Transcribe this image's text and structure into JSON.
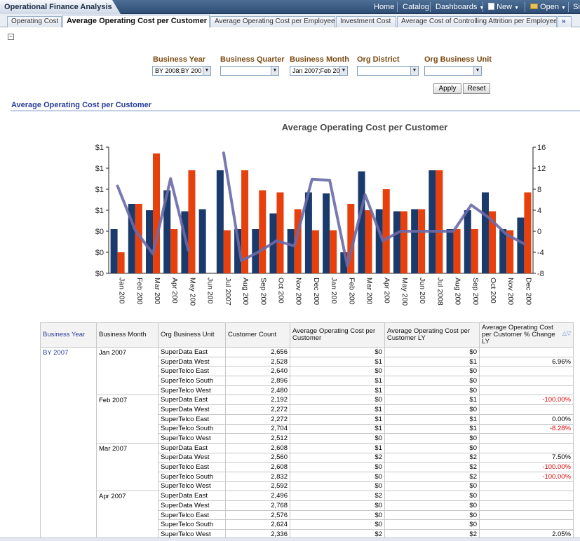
{
  "app_title": "Operational Finance Analysis",
  "nav": {
    "home": "Home",
    "catalog": "Catalog",
    "dashboards": "Dashboards",
    "new": "New",
    "open": "Open",
    "more": "Si"
  },
  "tabs": [
    {
      "label": "Operating Cost"
    },
    {
      "label": "Average Operating Cost per Customer"
    },
    {
      "label": "Average Operating Cost per Employee"
    },
    {
      "label": "Investment Cost"
    },
    {
      "label": "Average Cost of Controlling Attrition per Employee"
    },
    {
      "label": "»"
    }
  ],
  "prompts": {
    "business_year": {
      "label": "Business Year",
      "value": "BY 2008;BY 200"
    },
    "business_quarter": {
      "label": "Business Quarter",
      "value": ""
    },
    "business_month": {
      "label": "Business Month",
      "value": "Jan 2007;Feb 20"
    },
    "org_district": {
      "label": "Org District",
      "value": ""
    },
    "org_business_unit": {
      "label": "Org Business Unit",
      "value": ""
    },
    "apply": "Apply",
    "reset": "Reset"
  },
  "section_title": "Average Operating Cost per Customer",
  "colors": {
    "series_a": "#1a3a6b",
    "series_b": "#e8400c",
    "line": "#6a6aa8"
  },
  "chart_data": {
    "type": "bar",
    "title": "Average Operating Cost per Customer",
    "y_tick_labels": [
      "$0",
      "$0",
      "$0",
      "$1",
      "$1",
      "$1",
      "$1"
    ],
    "y2_tick_labels": [
      "-8",
      "-4",
      "0",
      "4",
      "8",
      "12",
      "16"
    ],
    "y2lim": [
      -8,
      16
    ],
    "ylim": [
      0,
      1.2
    ],
    "categories": [
      "Jan 200",
      "Feb 200",
      "Mar 200",
      "Apr 200",
      "May 200",
      "Jun 200",
      "Jul 2007",
      "Aug 200",
      "Sep 200",
      "Oct 200",
      "Nov 200",
      "Dec 200",
      "Jan 200",
      "Feb 200",
      "Mar 200",
      "Apr 200",
      "May 200",
      "Jun 200",
      "Jul 2008",
      "Aug 200",
      "Sep 200",
      "Oct 200",
      "Nov 200",
      "Dec 200"
    ],
    "series": [
      {
        "values": [
          0.42,
          0.66,
          0.6,
          0.79,
          0.59,
          0.61,
          0.98,
          0.42,
          0.42,
          0.57,
          0.42,
          0.77,
          0.76,
          0.2,
          0.97,
          0.61,
          0.59,
          0.61,
          0.98,
          0.42,
          0.6,
          0.77,
          0.42,
          0.53
        ]
      },
      {
        "values": [
          0.2,
          0.66,
          1.14,
          0.42,
          0.98,
          null,
          0.41,
          0.98,
          0.79,
          0.77,
          0.61,
          0.41,
          0.41,
          0.66,
          0.6,
          0.8,
          0.59,
          0.61,
          0.98,
          0.42,
          0.42,
          0.59,
          0.41,
          0.77
        ]
      },
      {
        "values": [
          8.6,
          0.2,
          -4.3,
          10.0,
          -3.6,
          null,
          14.9,
          -5.6,
          -3.9,
          -1.8,
          -2.8,
          9.9,
          9.7,
          -6.6,
          6.96,
          -1.8,
          0.0,
          0.0,
          0.0,
          0.0,
          5.0,
          2.6,
          -0.6,
          -2.4
        ]
      }
    ]
  },
  "table": {
    "headers": [
      "Business Year",
      "Business Month",
      "Org Business Unit",
      "Customer Count",
      "Average Operating Cost per Customer",
      "Average Operating Cost per Customer LY",
      "Average Operating Cost per Customer % Change LY"
    ],
    "year": "BY 2007",
    "months": [
      {
        "month": "Jan 2007",
        "rows": [
          [
            "SuperData East",
            "2,656",
            "$0",
            "$0",
            ""
          ],
          [
            "SuperData West",
            "2,528",
            "$1",
            "$1",
            "6.96%"
          ],
          [
            "SuperTelco East",
            "2,640",
            "$0",
            "$0",
            ""
          ],
          [
            "SuperTelco South",
            "2,896",
            "$1",
            "$0",
            ""
          ],
          [
            "SuperTelco West",
            "2,480",
            "$1",
            "$0",
            ""
          ]
        ]
      },
      {
        "month": "Feb 2007",
        "rows": [
          [
            "SuperData East",
            "2,192",
            "$0",
            "$1",
            "-100.00%"
          ],
          [
            "SuperData West",
            "2,272",
            "$1",
            "$0",
            ""
          ],
          [
            "SuperTelco East",
            "2,272",
            "$1",
            "$1",
            "0.00%"
          ],
          [
            "SuperTelco South",
            "2,704",
            "$1",
            "$1",
            "-8.28%"
          ],
          [
            "SuperTelco West",
            "2,512",
            "$0",
            "$0",
            ""
          ]
        ]
      },
      {
        "month": "Mar 2007",
        "rows": [
          [
            "SuperData East",
            "2,608",
            "$1",
            "$0",
            ""
          ],
          [
            "SuperData West",
            "2,560",
            "$2",
            "$2",
            "7.50%"
          ],
          [
            "SuperTelco East",
            "2,608",
            "$0",
            "$2",
            "-100.00%"
          ],
          [
            "SuperTelco South",
            "2,832",
            "$0",
            "$2",
            "-100.00%"
          ],
          [
            "SuperTelco West",
            "2,592",
            "$0",
            "$0",
            ""
          ]
        ]
      },
      {
        "month": "Apr 2007",
        "rows": [
          [
            "SuperData East",
            "2,496",
            "$2",
            "$0",
            ""
          ],
          [
            "SuperData West",
            "2,768",
            "$0",
            "$0",
            ""
          ],
          [
            "SuperTelco East",
            "2,576",
            "$0",
            "$0",
            ""
          ],
          [
            "SuperTelco South",
            "2,624",
            "$0",
            "$0",
            ""
          ],
          [
            "SuperTelco West",
            "2,336",
            "$2",
            "$2",
            "2.05%"
          ]
        ]
      }
    ]
  }
}
